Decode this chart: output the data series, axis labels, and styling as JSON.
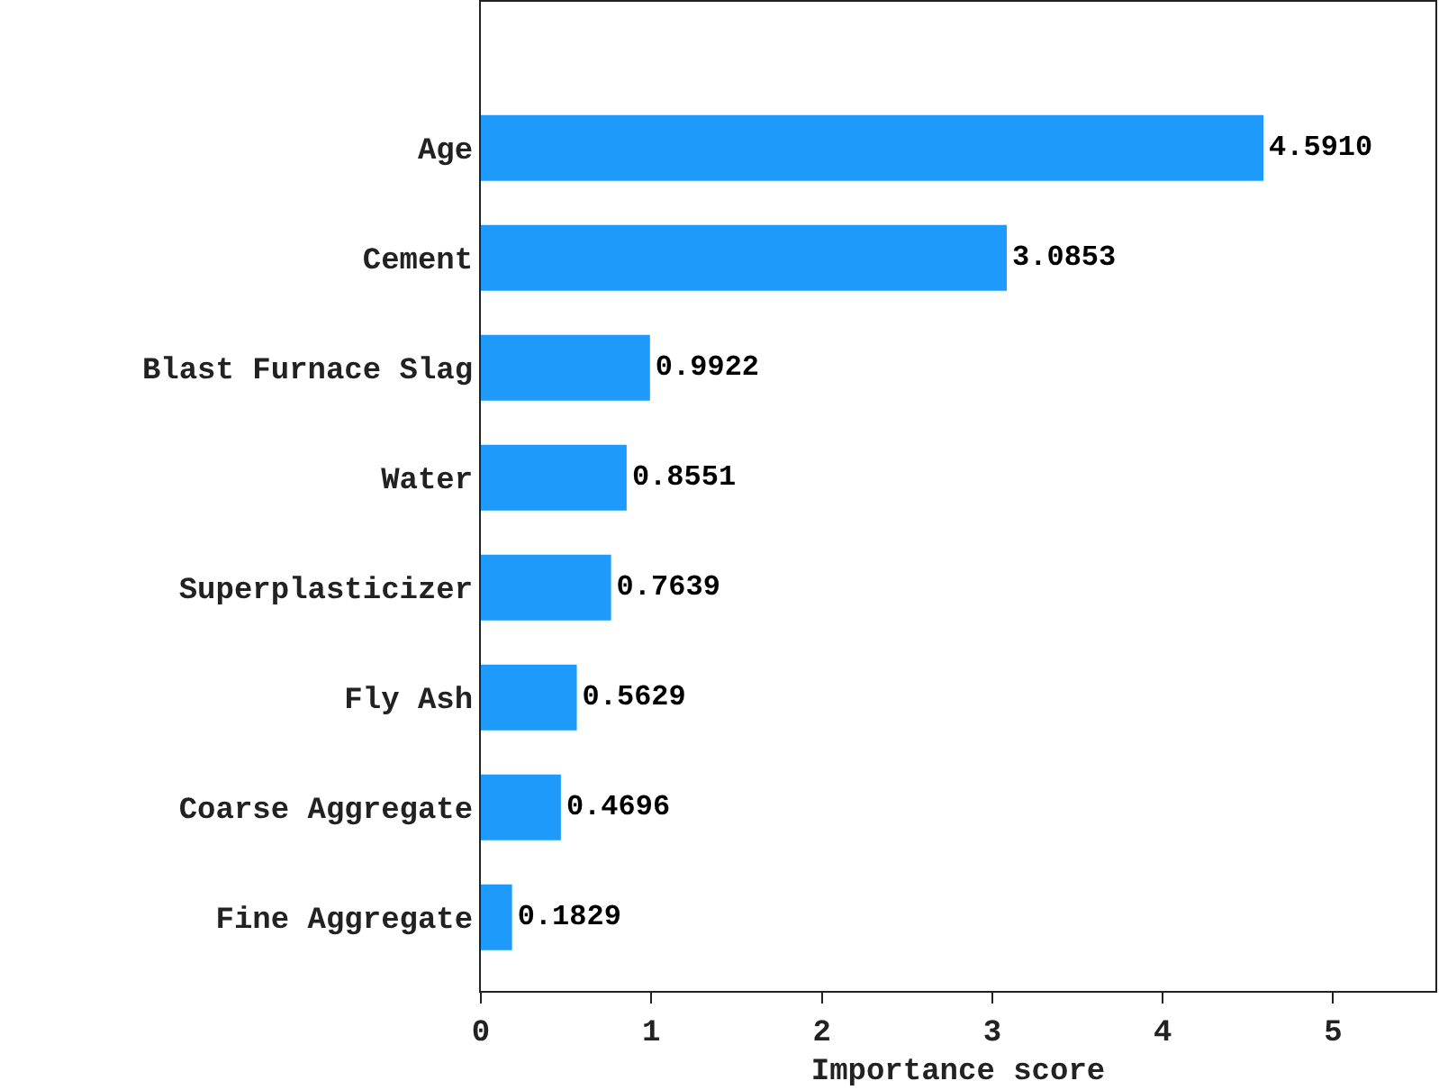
{
  "chart_data": {
    "type": "bar",
    "orientation": "horizontal",
    "xlabel": "Importance score",
    "categories": [
      "Age",
      "Cement",
      "Blast Furnace Slag",
      "Water",
      "Superplasticizer",
      "Fly Ash",
      "Coarse Aggregate",
      "Fine Aggregate"
    ],
    "values": [
      4.591,
      3.0853,
      0.9922,
      0.8551,
      0.7639,
      0.5629,
      0.4696,
      0.1829
    ],
    "value_labels": [
      "4.5910",
      "3.0853",
      "0.9922",
      "0.8551",
      "0.7639",
      "0.5629",
      "0.4696",
      "0.1829"
    ],
    "color": "#1e9bfa",
    "xlim": [
      0,
      5.6
    ],
    "xticks": [
      0,
      1,
      2,
      3,
      4,
      5
    ],
    "grid": false,
    "legend": false
  }
}
